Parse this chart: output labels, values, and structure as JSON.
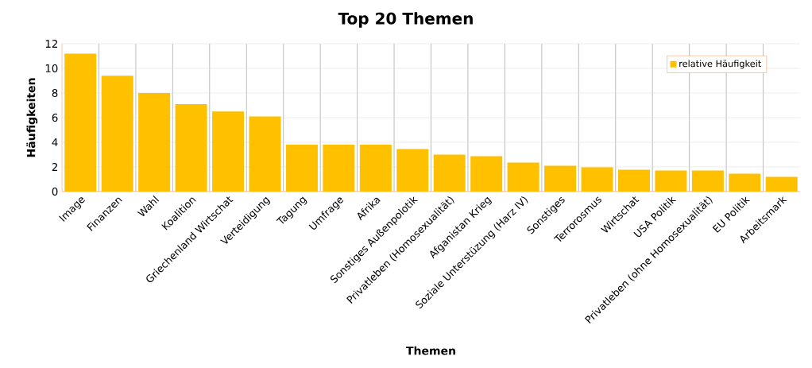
{
  "chart_data": {
    "type": "bar",
    "title": "Top 20 Themen",
    "xlabel": "Themen",
    "ylabel": "Häufigkeiten",
    "categories": [
      "Image",
      "Finanzen",
      "Wahl",
      "Koalition",
      "Griechenland Wirtschat",
      "Verteidigung",
      "Tagung",
      "Umfrage",
      "Afrika",
      "Sonstiges Außenpolotik",
      "Privatleben (Homosexualität)",
      "Afganistan Krieg",
      "Soziale Unterstüzung (Harz IV)",
      "Sonstiges",
      "Terrorosmus",
      "Wirtschat",
      "USA Politik",
      "Privatleben (ohne Homosexualität)",
      "EU Politik",
      "Arbeitsmark"
    ],
    "series": [
      {
        "name": "relative Häufigkeit",
        "color": "#ffc000",
        "values": [
          11.2,
          9.4,
          8.0,
          7.1,
          6.5,
          6.1,
          3.8,
          3.8,
          3.8,
          3.45,
          3.0,
          2.87,
          2.35,
          2.09,
          1.96,
          1.77,
          1.71,
          1.71,
          1.45,
          1.19
        ]
      }
    ],
    "ylim": [
      0,
      12
    ],
    "yticks": [
      0,
      2,
      4,
      6,
      8,
      10,
      12
    ],
    "grid": true,
    "legend": "top right"
  }
}
